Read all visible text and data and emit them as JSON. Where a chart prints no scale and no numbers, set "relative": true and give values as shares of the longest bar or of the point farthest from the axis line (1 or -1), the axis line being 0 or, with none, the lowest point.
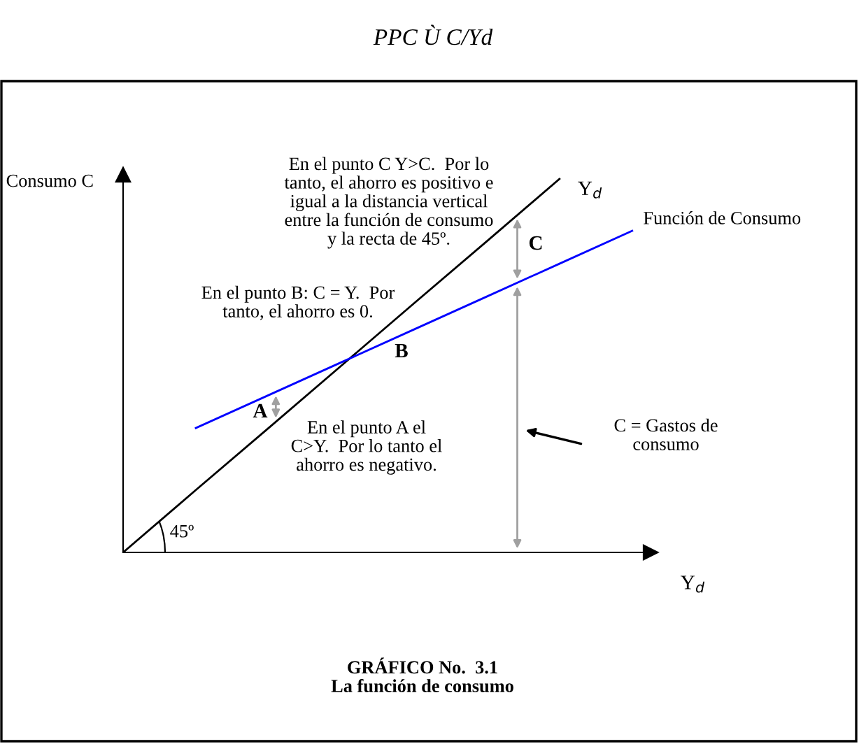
{
  "chart_data": {
    "type": "line",
    "relative": true,
    "title": "PPC Ù C/Yd",
    "xlabel": "Y$_{d}$",
    "ylabel": "Consumo C",
    "categories": [
      null,
      null,
      null,
      null,
      null,
      null,
      null,
      null
    ],
    "series": [
      {
        "name": "Y$_{d}$",
        "color": "#000000",
        "values": [
          0,
          0.167,
          0.333,
          0.5,
          0.667,
          0.833,
          1,
          null
        ]
      },
      {
        "name": "Función de Consumo",
        "color": "#0000ff",
        "values": [
          null,
          0.333,
          0.421,
          0.509,
          0.597,
          0.685,
          0.773,
          0.861
        ]
      }
    ],
    "annotations": [
      "A",
      "B",
      "C",
      "En el punto C Y>C.  Por lo\ntanto, el ahorro es positivo e\nigual a la distancia vertical\nentre la función de consumo\ny la recta de 45º.",
      "En el punto B: C = Y.  Por\ntanto, el ahorro es 0.",
      "En el punto A el\nC>Y.  Por lo tanto el\nahorro es negativo.",
      "C = Gastos de\nconsumo",
      "45º",
      "GRÁFICO No.  3.1\nLa función de consumo"
    ]
  }
}
